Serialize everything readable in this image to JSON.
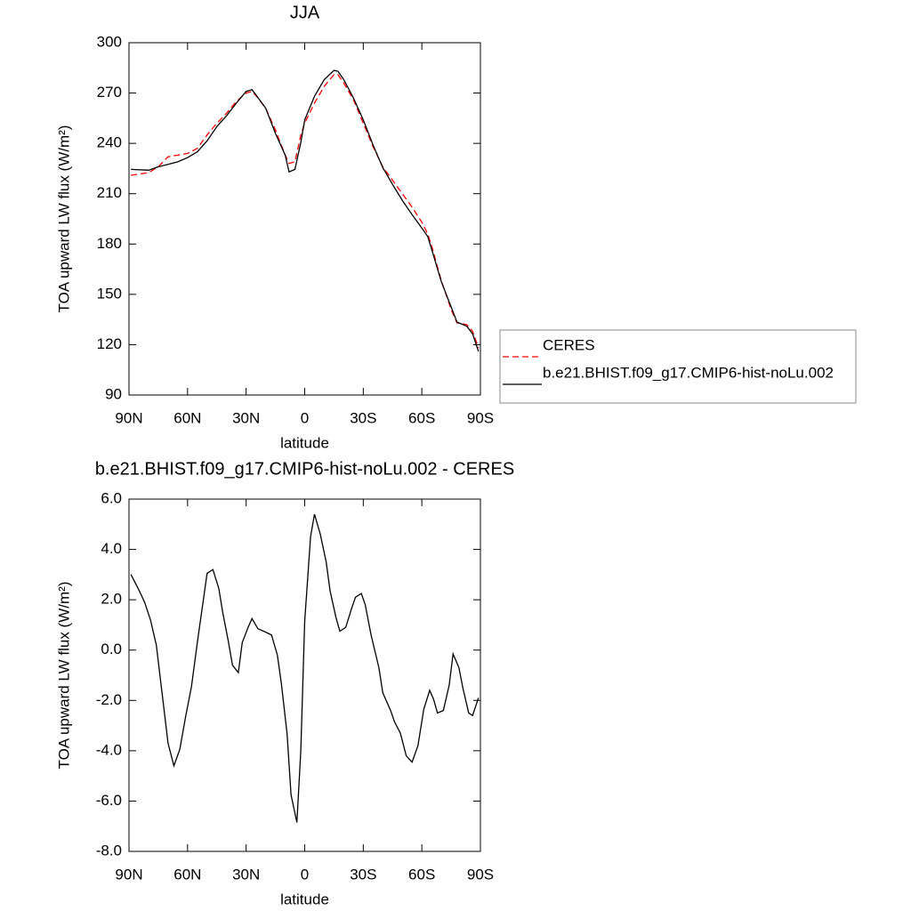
{
  "chart_data": [
    {
      "type": "line",
      "title": "JJA",
      "xlabel": "latitude",
      "ylabel": "TOA upward LW flux (W/m²)",
      "x": [
        89,
        80,
        75,
        70,
        65,
        60,
        55,
        50,
        45,
        40,
        35,
        30,
        27,
        25,
        20,
        15,
        10,
        8,
        5,
        2,
        0,
        -5,
        -10,
        -15,
        -17,
        -20,
        -25,
        -30,
        -35,
        -40,
        -45,
        -50,
        -55,
        -60,
        -63,
        -65,
        -70,
        -75,
        -78,
        -83,
        -86,
        -89
      ],
      "series": [
        {
          "name": "CERES",
          "color": "#ff0000",
          "style": "dashed",
          "values": [
            221,
            222.5,
            226,
            232,
            233,
            234,
            237,
            245,
            252,
            258,
            265,
            270,
            271,
            268.5,
            261,
            248,
            233,
            228,
            229,
            245,
            252,
            264,
            274,
            281,
            281,
            276,
            266,
            252,
            238,
            226,
            218,
            210,
            202,
            193,
            186,
            179,
            158,
            141,
            133,
            132,
            128,
            118
          ]
        },
        {
          "name": "b.e21.BHIST.f09_g17.CMIP6-hist-noLu.002",
          "color": "#000000",
          "style": "solid",
          "values": [
            224.5,
            224,
            226,
            227.5,
            229,
            231.5,
            235,
            241.5,
            250,
            256.5,
            264,
            271,
            272,
            269,
            261,
            246,
            233,
            223,
            224.5,
            240.5,
            254,
            268,
            278,
            283.5,
            283,
            278,
            267,
            254,
            239,
            225.5,
            215.5,
            206,
            197.5,
            189.5,
            184.5,
            177,
            157.5,
            142.5,
            133.5,
            131,
            126.5,
            116
          ]
        }
      ],
      "xlim": [
        90,
        -90
      ],
      "xticks": [
        {
          "value": 90,
          "label": "90N"
        },
        {
          "value": 60,
          "label": "60N"
        },
        {
          "value": 30,
          "label": "30N"
        },
        0,
        {
          "value": -30,
          "label": "30S"
        },
        {
          "value": -60,
          "label": "60S"
        },
        {
          "value": -90,
          "label": "90S"
        }
      ],
      "ylim": [
        90,
        300
      ],
      "yticks": [
        90,
        120,
        150,
        180,
        210,
        240,
        270,
        300
      ],
      "legend": "right"
    },
    {
      "type": "line",
      "title": "b.e21.BHIST.f09_g17.CMIP6-hist-noLu.002 - CERES",
      "xlabel": "latitude",
      "ylabel": "TOA upward LW flux (W/m²)",
      "x": [
        89,
        85,
        82,
        79,
        76,
        73,
        70,
        67,
        64,
        61,
        58,
        55,
        52,
        50,
        47,
        44,
        42,
        39,
        37,
        34,
        32,
        29,
        27,
        24,
        21,
        17,
        14,
        12,
        9,
        7,
        4,
        2,
        0,
        -3,
        -5,
        -8,
        -11,
        -13,
        -16,
        -18,
        -21,
        -24,
        -26,
        -29,
        -31,
        -34,
        -38,
        -40,
        -44,
        -46,
        -49,
        -52,
        -55,
        -58,
        -61,
        -64,
        -66,
        -68,
        -71,
        -74,
        -76,
        -79,
        -81,
        -84,
        -86,
        -89
      ],
      "values": [
        3.0,
        2.4,
        1.9,
        1.2,
        0.2,
        -1.75,
        -3.7,
        -4.6,
        -3.95,
        -2.65,
        -1.45,
        0.3,
        1.95,
        3.05,
        3.2,
        2.45,
        1.5,
        0.3,
        -0.6,
        -0.9,
        0.3,
        0.9,
        1.25,
        0.85,
        0.75,
        0.6,
        -0.2,
        -1.3,
        -3.35,
        -5.75,
        -6.85,
        -4.0,
        1.15,
        4.5,
        5.4,
        4.6,
        3.5,
        2.35,
        1.3,
        0.75,
        0.9,
        1.65,
        2.1,
        2.25,
        1.8,
        0.6,
        -0.7,
        -1.7,
        -2.4,
        -2.85,
        -3.3,
        -4.2,
        -4.45,
        -3.8,
        -2.35,
        -1.6,
        -1.95,
        -2.5,
        -2.4,
        -1.4,
        -0.15,
        -0.7,
        -1.5,
        -2.5,
        -2.6,
        -1.9
      ],
      "color": "#000000",
      "xlim": [
        90,
        -90
      ],
      "xticks": [
        {
          "value": 90,
          "label": "90N"
        },
        {
          "value": 60,
          "label": "60N"
        },
        {
          "value": 30,
          "label": "30N"
        },
        0,
        {
          "value": -30,
          "label": "30S"
        },
        {
          "value": -60,
          "label": "60S"
        },
        {
          "value": -90,
          "label": "90S"
        }
      ],
      "ylim": [
        -8,
        6
      ],
      "yticks": [
        {
          "value": -8,
          "label": "-8.0"
        },
        {
          "value": -6,
          "label": "-6.0"
        },
        {
          "value": -4,
          "label": "-4.0"
        },
        {
          "value": -2,
          "label": "-2.0"
        },
        {
          "value": 0,
          "label": "0.0"
        },
        {
          "value": 2,
          "label": "2.0"
        },
        {
          "value": 4,
          "label": "4.0"
        },
        {
          "value": 6,
          "label": "6.0"
        }
      ]
    }
  ]
}
